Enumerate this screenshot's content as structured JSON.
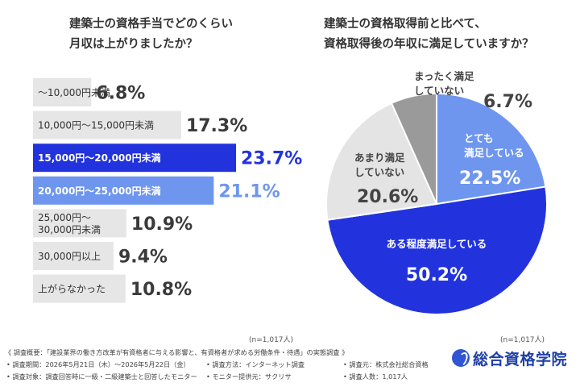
{
  "chart_data": [
    {
      "type": "bar",
      "title": "建築士の資格手当でどのくらい\n月収は上がりましたか？",
      "categories": [
        "〜10,000円未満",
        "10,000円〜15,000円未満",
        "15,000円〜20,000円未満",
        "20,000円〜25,000円未満",
        "25,000円〜\n30,000円未満",
        "30,000円以上",
        "上がらなかった"
      ],
      "values": [
        6.8,
        17.3,
        23.7,
        21.1,
        10.9,
        9.4,
        10.8
      ],
      "value_labels": [
        "6.8%",
        "17.3%",
        "23.7%",
        "21.1%",
        "10.9%",
        "9.4%",
        "10.8%"
      ],
      "highlight": [
        null,
        null,
        "#2233dd",
        "#6e96ee",
        null,
        null,
        null
      ],
      "base_color": "#e6e6e6",
      "n": "(n=1,017人)"
    },
    {
      "type": "pie",
      "title": "建築士の資格取得前と比べて、\n資格取得後の年収に満足していますか？",
      "slices": [
        {
          "label": "とても\n満足している",
          "value": 22.5,
          "value_label": "22.5%",
          "color": "#6e96ee"
        },
        {
          "label": "ある程度満足している",
          "value": 50.2,
          "value_label": "50.2%",
          "color": "#2233dd"
        },
        {
          "label": "あまり満足\nしていない",
          "value": 20.6,
          "value_label": "20.6%",
          "color": "#e4e4e4"
        },
        {
          "label": "まったく満足\nしていない",
          "value": 6.7,
          "value_label": "6.7%",
          "color": "#9a9a9a"
        }
      ],
      "n": "(n=1,017人)"
    }
  ],
  "footer": {
    "line1": "《 調査概要：「建設業界の働き方改革が有資格者に与える影響と、有資格者が求める労働条件・待遇」の実態調査 》",
    "period": "• 調査期間：2026年5月21日（木）〜2026年5月22日（金）",
    "method": "• 調査方法：インターネット調査",
    "source": "• 調査元：株式会社総合資格",
    "target": "• 調査対象：調査回答時に一級・二級建築士と回答したモニター",
    "provider": "• モニター提供元：サクリサ",
    "count": "• 調査人数：1,017人"
  },
  "brand": {
    "name": "総合資格学院",
    "accent": "#2f55d4"
  }
}
